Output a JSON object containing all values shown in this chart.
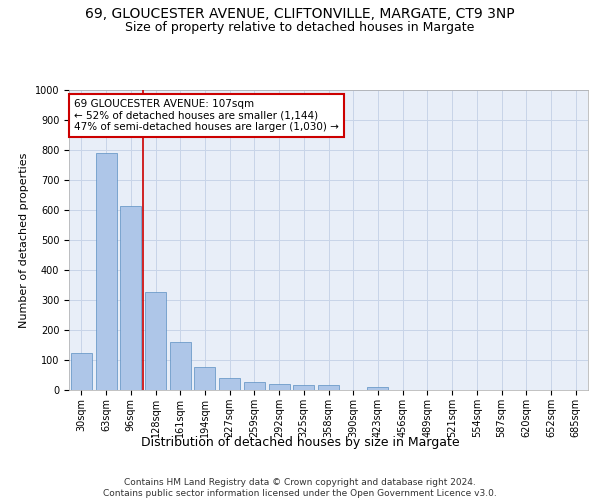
{
  "title1": "69, GLOUCESTER AVENUE, CLIFTONVILLE, MARGATE, CT9 3NP",
  "title2": "Size of property relative to detached houses in Margate",
  "xlabel": "Distribution of detached houses by size in Margate",
  "ylabel": "Number of detached properties",
  "categories": [
    "30sqm",
    "63sqm",
    "96sqm",
    "128sqm",
    "161sqm",
    "194sqm",
    "227sqm",
    "259sqm",
    "292sqm",
    "325sqm",
    "358sqm",
    "390sqm",
    "423sqm",
    "456sqm",
    "489sqm",
    "521sqm",
    "554sqm",
    "587sqm",
    "620sqm",
    "652sqm",
    "685sqm"
  ],
  "values": [
    125,
    790,
    615,
    328,
    160,
    77,
    40,
    26,
    20,
    16,
    16,
    0,
    10,
    0,
    0,
    0,
    0,
    0,
    0,
    0,
    0
  ],
  "bar_color": "#aec6e8",
  "bar_edge_color": "#5a8fc2",
  "vline_color": "#cc0000",
  "annotation_text": "69 GLOUCESTER AVENUE: 107sqm\n← 52% of detached houses are smaller (1,144)\n47% of semi-detached houses are larger (1,030) →",
  "annotation_box_color": "#ffffff",
  "annotation_box_edge_color": "#cc0000",
  "ylim": [
    0,
    1000
  ],
  "yticks": [
    0,
    100,
    200,
    300,
    400,
    500,
    600,
    700,
    800,
    900,
    1000
  ],
  "grid_color": "#c8d4e8",
  "background_color": "#e8eef8",
  "footer_line1": "Contains HM Land Registry data © Crown copyright and database right 2024.",
  "footer_line2": "Contains public sector information licensed under the Open Government Licence v3.0.",
  "title1_fontsize": 10,
  "title2_fontsize": 9,
  "xlabel_fontsize": 9,
  "ylabel_fontsize": 8,
  "tick_fontsize": 7,
  "annotation_fontsize": 7.5,
  "footer_fontsize": 6.5
}
